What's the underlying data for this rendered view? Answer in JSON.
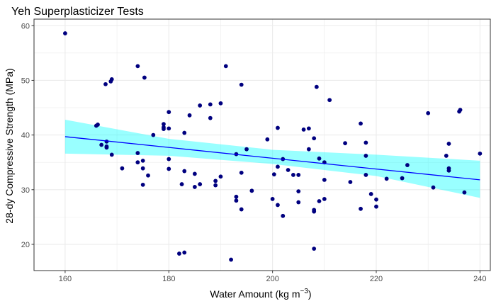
{
  "chart_data": {
    "type": "scatter",
    "title": "Yeh Superplasticizer Tests",
    "xlabel": "Water Amount (kg m",
    "xlabel_sup": "−3",
    "xlabel_end": ")",
    "ylabel": "28-dy Compressive Strength (MPa)",
    "xlim": [
      154,
      242
    ],
    "ylim": [
      15.2,
      61.2
    ],
    "x_ticks": [
      160,
      180,
      200,
      220,
      240
    ],
    "y_ticks": [
      20,
      30,
      40,
      50,
      60
    ],
    "grid": true,
    "points": [
      {
        "x": 160,
        "y": 58.6
      },
      {
        "x": 166,
        "y": 41.7
      },
      {
        "x": 166.3,
        "y": 41.9
      },
      {
        "x": 167,
        "y": 38.2
      },
      {
        "x": 167.8,
        "y": 49.3
      },
      {
        "x": 168,
        "y": 38.8
      },
      {
        "x": 168,
        "y": 37.9
      },
      {
        "x": 168,
        "y": 37.7
      },
      {
        "x": 168.8,
        "y": 49.8
      },
      {
        "x": 169,
        "y": 50.2
      },
      {
        "x": 169,
        "y": 36.4
      },
      {
        "x": 171,
        "y": 33.9
      },
      {
        "x": 174,
        "y": 52.6
      },
      {
        "x": 174,
        "y": 36.7
      },
      {
        "x": 174,
        "y": 35
      },
      {
        "x": 175,
        "y": 35.3
      },
      {
        "x": 175,
        "y": 33.9
      },
      {
        "x": 175,
        "y": 30.9
      },
      {
        "x": 175.3,
        "y": 50.5
      },
      {
        "x": 176,
        "y": 32.6
      },
      {
        "x": 177,
        "y": 40
      },
      {
        "x": 179,
        "y": 42
      },
      {
        "x": 179,
        "y": 41.4
      },
      {
        "x": 179,
        "y": 41.1
      },
      {
        "x": 180,
        "y": 44.2
      },
      {
        "x": 180,
        "y": 41.2
      },
      {
        "x": 180,
        "y": 35.6
      },
      {
        "x": 180,
        "y": 33.8
      },
      {
        "x": 182,
        "y": 18.3
      },
      {
        "x": 182.5,
        "y": 31
      },
      {
        "x": 183,
        "y": 40.4
      },
      {
        "x": 183,
        "y": 33.4
      },
      {
        "x": 183,
        "y": 18.5
      },
      {
        "x": 184,
        "y": 43.6
      },
      {
        "x": 185,
        "y": 30.5
      },
      {
        "x": 185,
        "y": 32.9
      },
      {
        "x": 186,
        "y": 45.4
      },
      {
        "x": 186,
        "y": 31
      },
      {
        "x": 188,
        "y": 45.6
      },
      {
        "x": 188,
        "y": 43.1
      },
      {
        "x": 189,
        "y": 31.6
      },
      {
        "x": 189,
        "y": 30.8
      },
      {
        "x": 190,
        "y": 45.8
      },
      {
        "x": 190,
        "y": 32.4
      },
      {
        "x": 191,
        "y": 52.6
      },
      {
        "x": 192,
        "y": 17.2
      },
      {
        "x": 193,
        "y": 36.5
      },
      {
        "x": 193,
        "y": 28.7
      },
      {
        "x": 193,
        "y": 28
      },
      {
        "x": 194,
        "y": 49.2
      },
      {
        "x": 194,
        "y": 33.1
      },
      {
        "x": 194,
        "y": 26.4
      },
      {
        "x": 195,
        "y": 37.4
      },
      {
        "x": 196,
        "y": 29.8
      },
      {
        "x": 199,
        "y": 39.2
      },
      {
        "x": 200,
        "y": 28.3
      },
      {
        "x": 200.3,
        "y": 32.8
      },
      {
        "x": 201,
        "y": 41.3
      },
      {
        "x": 201,
        "y": 34.2
      },
      {
        "x": 201,
        "y": 27.2
      },
      {
        "x": 202,
        "y": 35.6
      },
      {
        "x": 202,
        "y": 25.2
      },
      {
        "x": 203,
        "y": 33.6
      },
      {
        "x": 204,
        "y": 32.7
      },
      {
        "x": 205,
        "y": 32.7
      },
      {
        "x": 205,
        "y": 29.7
      },
      {
        "x": 205,
        "y": 27.7
      },
      {
        "x": 206,
        "y": 41
      },
      {
        "x": 207,
        "y": 41.2
      },
      {
        "x": 207,
        "y": 37.4
      },
      {
        "x": 208,
        "y": 39.4
      },
      {
        "x": 208,
        "y": 26.3
      },
      {
        "x": 208,
        "y": 26
      },
      {
        "x": 208,
        "y": 19.2
      },
      {
        "x": 208.5,
        "y": 48.8
      },
      {
        "x": 209,
        "y": 35.7
      },
      {
        "x": 209,
        "y": 27.9
      },
      {
        "x": 210,
        "y": 35
      },
      {
        "x": 210,
        "y": 31.8
      },
      {
        "x": 210,
        "y": 28.3
      },
      {
        "x": 211,
        "y": 46.4
      },
      {
        "x": 214,
        "y": 38.5
      },
      {
        "x": 215,
        "y": 31.4
      },
      {
        "x": 217,
        "y": 42.1
      },
      {
        "x": 217,
        "y": 26.5
      },
      {
        "x": 218,
        "y": 38.6
      },
      {
        "x": 218,
        "y": 36.2
      },
      {
        "x": 218,
        "y": 32.7
      },
      {
        "x": 219,
        "y": 29.2
      },
      {
        "x": 220,
        "y": 28.2
      },
      {
        "x": 220,
        "y": 26.9
      },
      {
        "x": 222,
        "y": 32
      },
      {
        "x": 225,
        "y": 32.1
      },
      {
        "x": 226,
        "y": 34.5
      },
      {
        "x": 230,
        "y": 44
      },
      {
        "x": 231,
        "y": 30.4
      },
      {
        "x": 233.5,
        "y": 36.2
      },
      {
        "x": 234,
        "y": 38.4
      },
      {
        "x": 234,
        "y": 33.9
      },
      {
        "x": 234,
        "y": 33.5
      },
      {
        "x": 236,
        "y": 44.3
      },
      {
        "x": 236.2,
        "y": 44.6
      },
      {
        "x": 237,
        "y": 29.5
      },
      {
        "x": 240,
        "y": 36.6
      }
    ],
    "fit": {
      "x": [
        160,
        240
      ],
      "y": [
        39.7,
        31.8
      ]
    },
    "confidence_band": {
      "x": [
        160,
        180,
        200,
        220,
        240
      ],
      "lower": [
        36.6,
        36.2,
        34.7,
        32.5,
        28.5
      ],
      "upper": [
        42.8,
        39.3,
        37.3,
        36.4,
        35.3
      ]
    },
    "colors": {
      "points": "#00007f",
      "fit_line": "#0000ff",
      "band": "#00ffff",
      "grid": "#ebebeb",
      "panel_border": "#333333",
      "text": "#4d4d4d"
    }
  }
}
